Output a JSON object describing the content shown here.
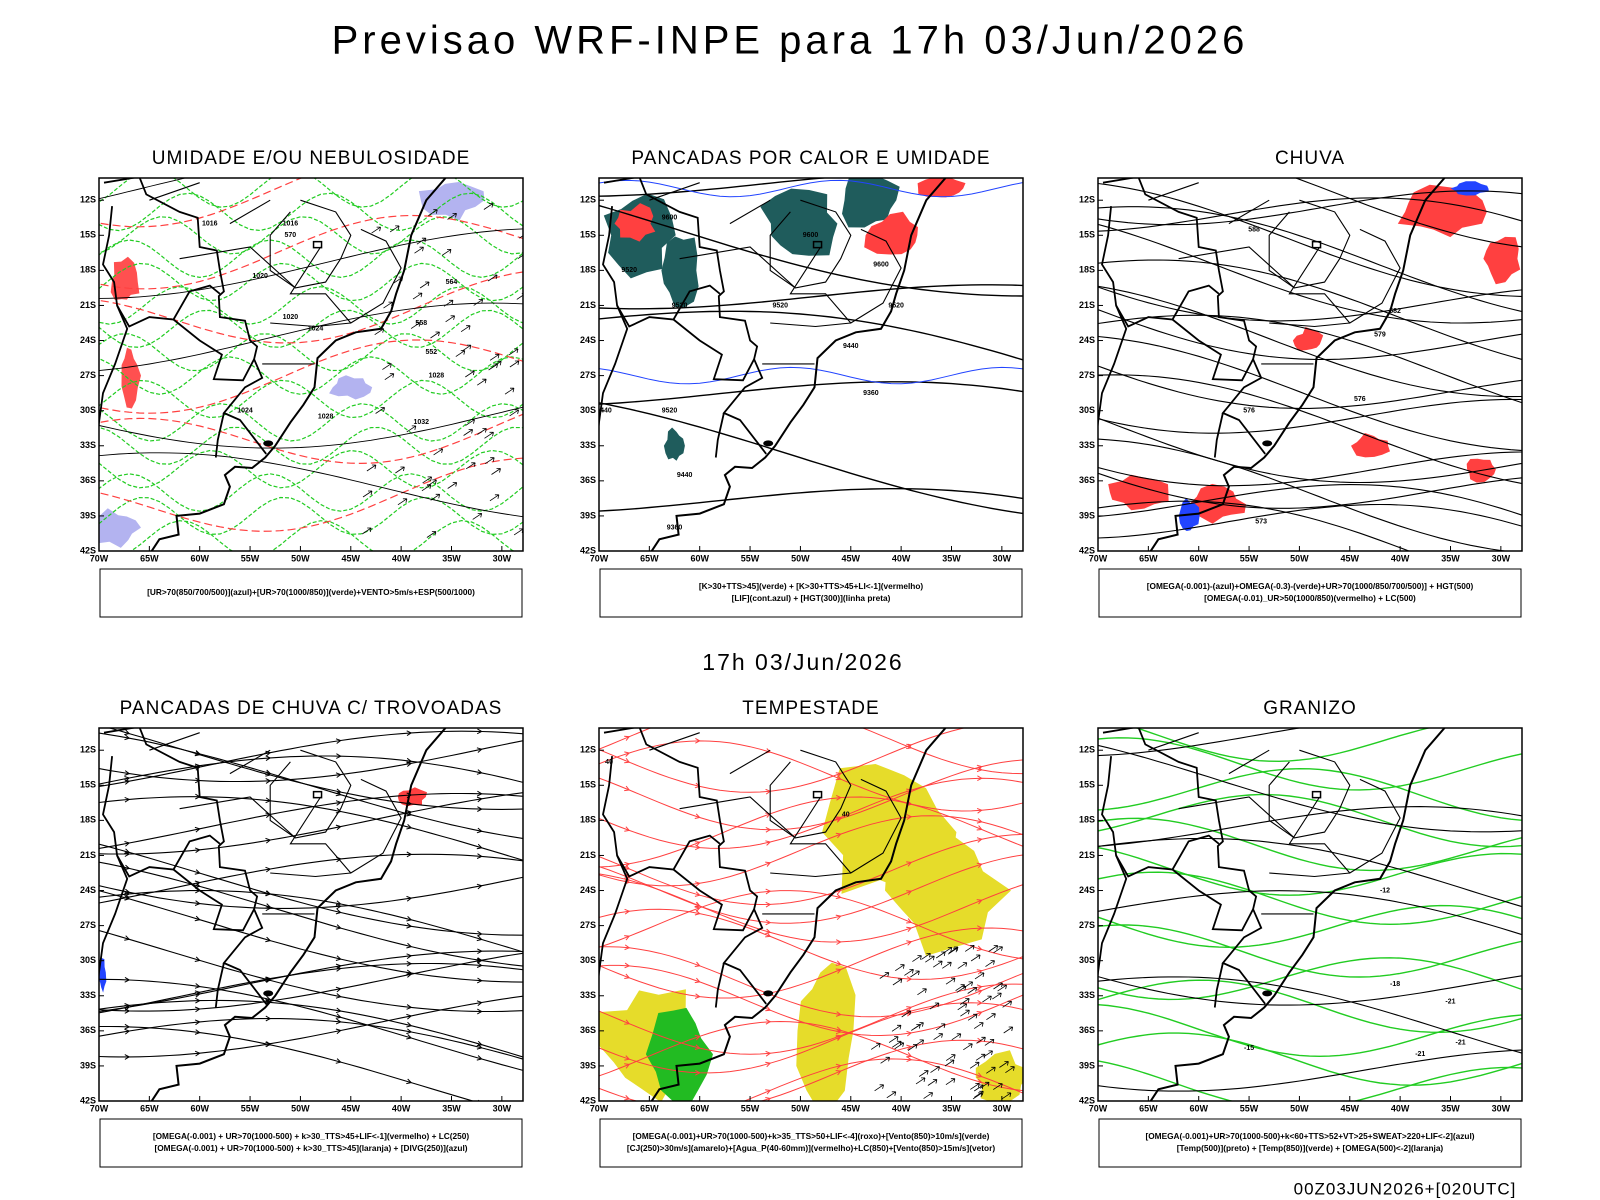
{
  "header": {
    "title": "Previsao WRF-INPE  para 17h 03/Jun/2026",
    "middle_date": "17h 03/Jun/2026",
    "footer": "00Z03JUN2026+[020UTC]"
  },
  "axes": {
    "lat_ticks": [
      {
        "value": -12,
        "label": "12S"
      },
      {
        "value": -15,
        "label": "15S"
      },
      {
        "value": -18,
        "label": "18S"
      },
      {
        "value": -21,
        "label": "21S"
      },
      {
        "value": -24,
        "label": "24S"
      },
      {
        "value": -27,
        "label": "27S"
      },
      {
        "value": -30,
        "label": "30S"
      },
      {
        "value": -33,
        "label": "33S"
      },
      {
        "value": -36,
        "label": "36S"
      },
      {
        "value": -39,
        "label": "39S"
      },
      {
        "value": -42,
        "label": "42S"
      }
    ],
    "lon_ticks": [
      {
        "value": -70,
        "label": "70W"
      },
      {
        "value": -65,
        "label": "65W"
      },
      {
        "value": -60,
        "label": "60W"
      },
      {
        "value": -55,
        "label": "55W"
      },
      {
        "value": -50,
        "label": "50W"
      },
      {
        "value": -45,
        "label": "45W"
      },
      {
        "value": -40,
        "label": "40W"
      },
      {
        "value": -35,
        "label": "35W"
      },
      {
        "value": -30,
        "label": "30W"
      }
    ]
  },
  "panels": [
    {
      "title": "UMIDADE E/OU NEBULOSIDADE",
      "legend": [
        "[UR>70(850/700/500)](azul)+[UR>70(1000/850)](verde)+VENTO>5m/s+ESP(500/1000)"
      ],
      "contour_labels": [
        1016,
        1016,
        1020,
        1020,
        1024,
        1024,
        1028,
        1028,
        1032,
        570,
        564,
        558,
        552
      ]
    },
    {
      "title": "PANCADAS POR CALOR E UMIDADE",
      "legend": [
        "[K>30+TTS>45](verde) + [K>30+TTS>45+LI<-1](vermelho)",
        "[LIF](cont.azul) + [HGT(300)](linha preta)"
      ],
      "contour_labels": [
        9600,
        9600,
        9600,
        9520,
        9520,
        9520,
        9520,
        9520,
        9440,
        9440,
        9440,
        9360,
        9360
      ]
    },
    {
      "title": "CHUVA",
      "legend": [
        "[OMEGA(-0.001)-(azul)+OMEGA(-0.3)-(verde)+UR>70(1000/850/700/500)] + HGT(500)",
        "[OMEGA(-0.01)_UR>50(1000/850)(vermelho) + LC(500)"
      ],
      "contour_labels": [
        588,
        582,
        579,
        576,
        576,
        573
      ]
    },
    {
      "title": "PANCADAS DE CHUVA C/ TROVOADAS",
      "legend": [
        "[OMEGA(-0.001) + UR>70(1000-500) + k>30_TTS>45+LIF<-1](vermelho) + LC(250)",
        "[OMEGA(-0.001) + UR>70(1000-500) + k>30_TTS>45](laranja) + [DIVG(250)](azul)"
      ],
      "contour_labels": []
    },
    {
      "title": "TEMPESTADE",
      "legend": [
        "[OMEGA(-0.001)+UR>70(1000-500)+k>35_TTS>50+LIF<-4](roxo)+[Vento(850)>10m/s](verde)",
        "[CJ(250)>30m/s](amarelo)+[Agua_P(40-60mm)](vermelho)+LC(850)+[Vento(850)>15m/s](vetor)"
      ],
      "contour_labels": [
        40,
        40
      ]
    },
    {
      "title": "GRANIZO",
      "legend": [
        "[OMEGA(-0.001)+UR>70(1000-500)+k<60+TTS>52+VT>25+SWEAT>220+LIF<-2](azul)",
        "[Temp(500)](preto) + [Temp(850)](verde) + [OMEGA(500)<-2](laranja)"
      ],
      "contour_labels": [
        -12,
        -18,
        -21,
        -21,
        -15,
        -21
      ]
    }
  ]
}
